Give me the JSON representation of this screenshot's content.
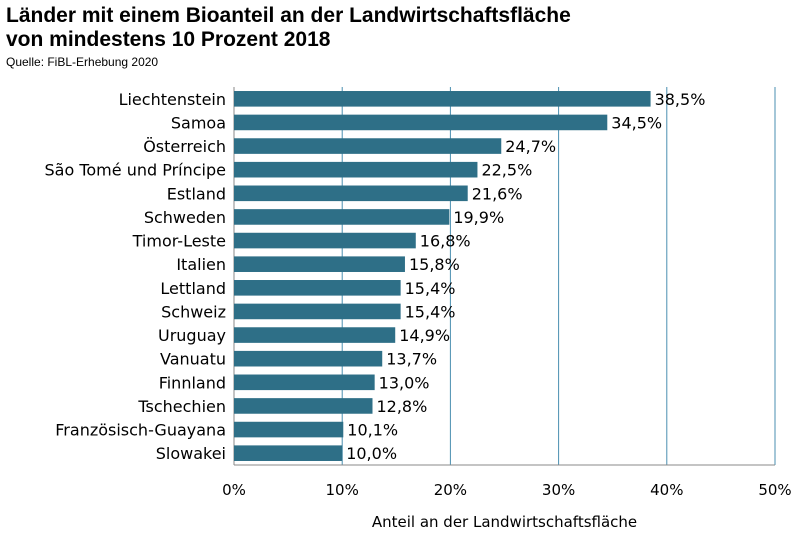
{
  "chart_data": {
    "type": "bar",
    "orientation": "horizontal",
    "title_line1": "Länder mit einem Bioanteil  an der Landwirtschaftsfläche",
    "title_line2": "von mindestens 10 Prozent 2018",
    "source": "Quelle: FiBL-Erhebung 2020",
    "xlabel": "Anteil an der Landwirtschaftsfläche",
    "ylabel": "",
    "xlim": [
      0,
      50
    ],
    "x_ticks": [
      0,
      10,
      20,
      30,
      40,
      50
    ],
    "x_tick_labels": [
      "0%",
      "10%",
      "20%",
      "30%",
      "40%",
      "50%"
    ],
    "grid": "vertical",
    "bar_color": "#2e6f87",
    "categories": [
      "Liechtenstein",
      "Samoa",
      "Österreich",
      "São Tomé und Príncipe",
      "Estland",
      "Schweden",
      "Timor-Leste",
      "Italien",
      "Lettland",
      "Schweiz",
      "Uruguay",
      "Vanuatu",
      "Finnland",
      "Tschechien",
      "Französisch-Guayana",
      "Slowakei"
    ],
    "values": [
      38.5,
      34.5,
      24.7,
      22.5,
      21.6,
      19.9,
      16.8,
      15.8,
      15.4,
      15.4,
      14.9,
      13.7,
      13.0,
      12.8,
      10.1,
      10.0
    ],
    "data_labels": [
      "38,5%",
      "34,5%",
      "24,7%",
      "22,5%",
      "21,6%",
      "19,9%",
      "16,8%",
      "15,8%",
      "15,4%",
      "15,4%",
      "14,9%",
      "13,7%",
      "13,0%",
      "12,8%",
      "10,1%",
      "10,0%"
    ]
  }
}
